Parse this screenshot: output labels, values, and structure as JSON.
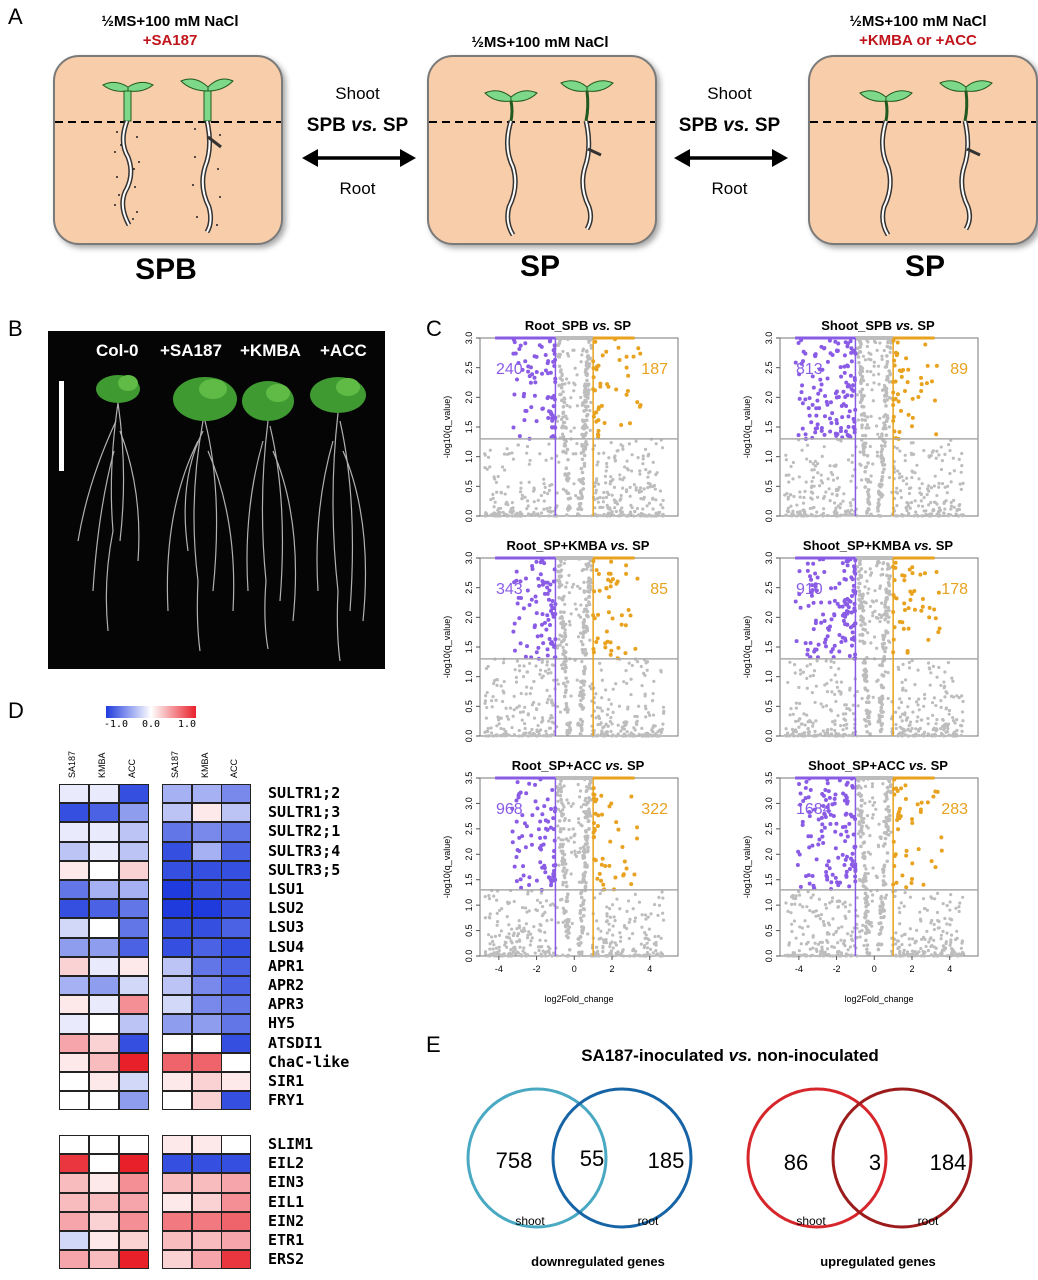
{
  "panels": {
    "a": "A",
    "b": "B",
    "c": "C",
    "d": "D",
    "e": "E"
  },
  "panelA": {
    "left": {
      "cond": "½MS+100 mM NaCl",
      "treat": "+SA187",
      "label": "SPB"
    },
    "center": {
      "cond": "½MS+100 mM NaCl",
      "label": "SP"
    },
    "right": {
      "cond": "½MS+100 mM NaCl",
      "treat": "+KMBA or +ACC",
      "label": "SP"
    },
    "arrow1": {
      "top": "Shoot",
      "mid_a": "SPB",
      "mid_vs": "vs.",
      "mid_b": "SP",
      "bottom": "Root"
    },
    "arrow2": {
      "top": "Shoot",
      "mid_a": "SPB",
      "mid_vs": "vs.",
      "mid_b": "SP",
      "bottom": "Root"
    }
  },
  "panelB": {
    "labels": [
      "Col-0",
      "+SA187",
      "+KMBA",
      "+ACC"
    ]
  },
  "panelC": {
    "ylabel": "-log10(q_value)",
    "xlabel": "log2Fold_change",
    "plots": [
      {
        "title_a": "Root_SPB",
        "title_vs": "vs.",
        "title_b": "SP",
        "down": "240",
        "up": "187"
      },
      {
        "title_a": "Shoot_SPB",
        "title_vs": "vs.",
        "title_b": "SP",
        "down": "813",
        "up": "89"
      },
      {
        "title_a": "Root_SP+KMBA",
        "title_vs": "vs.",
        "title_b": "SP",
        "down": "343",
        "up": "85"
      },
      {
        "title_a": "Shoot_SP+KMBA",
        "title_vs": "vs.",
        "title_b": "SP",
        "down": "910",
        "up": "178"
      },
      {
        "title_a": "Root_SP+ACC",
        "title_vs": "vs.",
        "title_b": "SP",
        "down": "968",
        "up": "322"
      },
      {
        "title_a": "Shoot_SP+ACC",
        "title_vs": "vs.",
        "title_b": "SP",
        "down": "1684",
        "up": "283"
      }
    ],
    "yticks_a": [
      "0.0",
      "0.5",
      "1.0",
      "1.5",
      "2.0",
      "2.5",
      "3.0"
    ],
    "yticks_b": [
      "0.0",
      "0.5",
      "1.0",
      "1.5",
      "2.0",
      "2.5",
      "3.0",
      "3.5"
    ],
    "xticks": [
      "-4",
      "-2",
      "0",
      "2",
      "4"
    ],
    "colors": {
      "down": "#8a5ce6",
      "up": "#e8a21f",
      "ns": "#bdbdbd"
    }
  },
  "panelD": {
    "scale": {
      "min": "-1.0",
      "mid": "0.0",
      "max": "1.0"
    },
    "columns": [
      "SA187",
      "KMBA",
      "ACC",
      "SA187",
      "KMBA",
      "ACC"
    ],
    "genes1": [
      "SULTR1;2",
      "SULTR1;3",
      "SULTR2;1",
      "SULTR3;4",
      "SULTR3;5",
      "LSU1",
      "LSU2",
      "LSU3",
      "LSU4",
      "APR1",
      "APR2",
      "APR3",
      "HY5",
      "ATSDI1",
      "ChaC-like",
      "SIR1",
      "FRY1"
    ],
    "genes2": [
      "SLIM1",
      "EIL2",
      "EIN3",
      "EIL1",
      "EIN2",
      "ETR1",
      "ERS2"
    ],
    "values1": [
      [
        -0.1,
        -0.1,
        -0.9,
        -0.4,
        -0.4,
        -0.6
      ],
      [
        -0.9,
        -0.8,
        -0.5,
        -0.3,
        0.1,
        -0.3
      ],
      [
        -0.1,
        -0.1,
        -0.3,
        -0.7,
        -0.6,
        -0.7
      ],
      [
        -0.3,
        -0.1,
        -0.3,
        -0.9,
        -0.4,
        -0.8
      ],
      [
        0.1,
        0.0,
        0.2,
        -0.9,
        -0.9,
        -0.9
      ],
      [
        -0.7,
        -0.4,
        -0.4,
        -1.0,
        -0.9,
        -0.9
      ],
      [
        -0.9,
        -0.8,
        -0.7,
        -1.0,
        -1.0,
        -0.9
      ],
      [
        -0.2,
        0.0,
        -0.7,
        -0.9,
        -0.9,
        -0.8
      ],
      [
        -0.5,
        -0.5,
        -0.8,
        -0.9,
        -0.8,
        -0.9
      ],
      [
        0.2,
        -0.1,
        0.1,
        -0.3,
        -0.7,
        -0.8
      ],
      [
        -0.4,
        -0.5,
        -0.2,
        -0.3,
        -0.6,
        -0.8
      ],
      [
        0.1,
        -0.1,
        0.5,
        -0.2,
        -0.6,
        -0.7
      ],
      [
        -0.1,
        0.0,
        -0.3,
        -0.5,
        -0.5,
        -0.7
      ],
      [
        0.4,
        0.2,
        -0.9,
        0.0,
        0.0,
        -0.9
      ],
      [
        0.1,
        0.3,
        1.0,
        0.7,
        0.7,
        0.0
      ],
      [
        0.0,
        0.1,
        -0.2,
        0.1,
        0.2,
        0.1
      ],
      [
        0.0,
        0.0,
        -0.5,
        0.0,
        0.2,
        -0.9
      ]
    ],
    "values2": [
      [
        0.0,
        0.0,
        0.0,
        0.1,
        0.1,
        0.0
      ],
      [
        0.9,
        0.0,
        1.0,
        -0.9,
        -0.9,
        -0.9
      ],
      [
        0.3,
        0.1,
        0.5,
        0.3,
        0.3,
        0.4
      ],
      [
        0.3,
        0.3,
        0.4,
        0.1,
        0.2,
        0.5
      ],
      [
        0.4,
        0.2,
        0.5,
        0.6,
        0.6,
        0.7
      ],
      [
        -0.2,
        0.1,
        0.2,
        0.3,
        0.3,
        0.4
      ],
      [
        0.4,
        0.3,
        1.0,
        0.2,
        0.4,
        0.9
      ]
    ]
  },
  "panelE": {
    "title_a": "SA187-inoculated",
    "title_vs": "vs.",
    "title_b": "non-inoculated",
    "down": {
      "left": "758",
      "both": "55",
      "right": "185",
      "sub_left": "shoot",
      "sub_right": "root",
      "caption": "downregulated genes",
      "color_left": "#49a9c3",
      "color_right": "#1664a6"
    },
    "up": {
      "left": "86",
      "both": "3",
      "right": "184",
      "sub_left": "shoot",
      "sub_right": "root",
      "caption": "upregulated genes",
      "color_left": "#d7262b",
      "color_right": "#9c1c1c"
    }
  }
}
